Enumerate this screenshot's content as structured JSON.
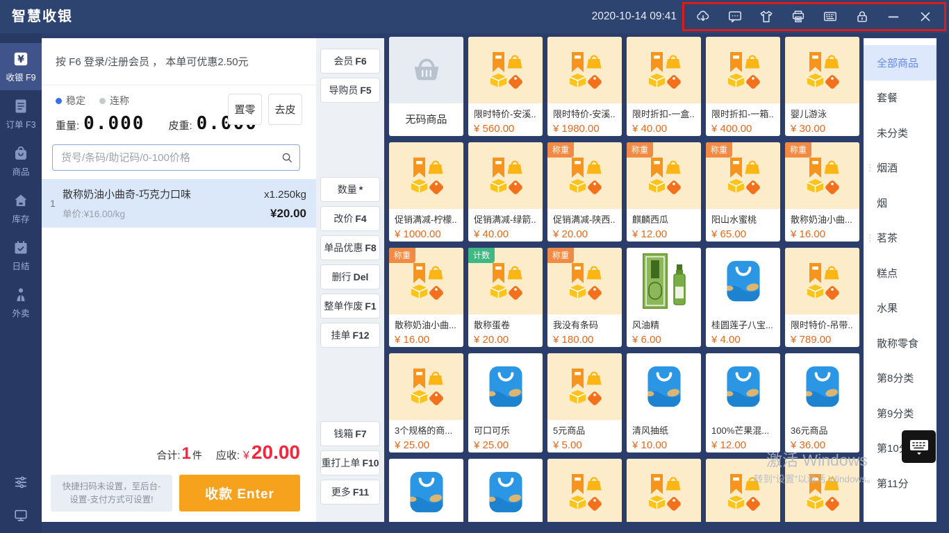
{
  "topbar": {
    "logo": "智慧收银",
    "datetime": "2020-10-14 09:41",
    "icons": [
      "cloud-download",
      "message",
      "clothing",
      "printer",
      "keyboard",
      "lock",
      "minimize",
      "close"
    ]
  },
  "sidebar": {
    "items": [
      {
        "label": "收银 F9",
        "icon": "cashier",
        "active": true
      },
      {
        "label": "订单 F3",
        "icon": "orders"
      },
      {
        "label": "商品",
        "icon": "goods"
      },
      {
        "label": "库存",
        "icon": "inventory"
      },
      {
        "label": "日结",
        "icon": "daily"
      },
      {
        "label": "外卖",
        "icon": "takeout"
      }
    ],
    "bottom_icons": [
      "settings-sliders",
      "monitor"
    ]
  },
  "pos": {
    "member_bar": "按 F6 登录/注册会员 ， 本单可优惠2.50元",
    "scale": {
      "stable_label": "稳定",
      "continuous_label": "连称",
      "weight_label": "重量:",
      "weight_value": "0.000",
      "tare_label": "皮重:",
      "tare_value": "0.000",
      "zero_button": "置零",
      "tare_button": "去皮"
    },
    "search_placeholder": "货号/条码/助记码/0-100价格",
    "cart": [
      {
        "index": "1",
        "name": "散称奶油小曲奇-巧克力口味",
        "qty": "x1.250kg",
        "unit_price": "单价:¥16.00/kg",
        "amount": "¥20.00"
      }
    ],
    "totals": {
      "label_total": "合计:",
      "count": "1",
      "unit": "件",
      "label_due": "应收:",
      "currency": "¥",
      "amount": "20.00"
    },
    "hint": "快捷扫码未设置，至后台-设置-支付方式可设置!",
    "pay_button": "收款 Enter"
  },
  "func_buttons": {
    "group1": [
      {
        "text": "会员",
        "key": "F6"
      },
      {
        "text": "导购员",
        "key": "F5"
      }
    ],
    "group2": [
      {
        "text": "数量",
        "key": "*"
      },
      {
        "text": "改价",
        "key": "F4"
      },
      {
        "text": "单品优惠",
        "key": "F8"
      },
      {
        "text": "删行",
        "key": "Del"
      },
      {
        "text": "整单作废",
        "key": "F1"
      },
      {
        "text": "挂单",
        "key": "F12"
      }
    ],
    "group3": [
      {
        "text": "钱箱",
        "key": "F7"
      },
      {
        "text": "重打上单",
        "key": "F10"
      },
      {
        "text": "更多",
        "key": "F11"
      }
    ]
  },
  "products": [
    {
      "name": "无码商品",
      "icon": "basket",
      "style": "nocode"
    },
    {
      "name": "限时特价-安溪..",
      "price": "560.00",
      "icon": "promo"
    },
    {
      "name": "限时特价-安溪..",
      "price": "1980.00",
      "icon": "promo"
    },
    {
      "name": "限时折扣-一盒..",
      "price": "40.00",
      "icon": "promo"
    },
    {
      "name": "限时折扣-一箱..",
      "price": "400.00",
      "icon": "promo"
    },
    {
      "name": "婴儿游泳",
      "price": "30.00",
      "icon": "promo"
    },
    {
      "name": "促销满减-柠檬..",
      "price": "1000.00",
      "icon": "promo"
    },
    {
      "name": "促销满减-绿箭..",
      "price": "40.00",
      "icon": "promo"
    },
    {
      "name": "促销满减-陕西..",
      "price": "20.00",
      "icon": "promo",
      "tag": "称重",
      "tag_type": "weigh"
    },
    {
      "name": "麒麟西瓜",
      "price": "12.00",
      "icon": "promo",
      "tag": "称重",
      "tag_type": "weigh"
    },
    {
      "name": "阳山水蜜桃",
      "price": "65.00",
      "icon": "promo",
      "tag": "称重",
      "tag_type": "weigh"
    },
    {
      "name": "散称奶油小曲...",
      "price": "16.00",
      "icon": "promo",
      "tag": "称重",
      "tag_type": "weigh"
    },
    {
      "name": "散称奶油小曲...",
      "price": "16.00",
      "icon": "promo",
      "tag": "称重",
      "tag_type": "weigh"
    },
    {
      "name": "散称蛋卷",
      "price": "20.00",
      "icon": "promo",
      "tag": "计数",
      "tag_type": "count"
    },
    {
      "name": "我没有条码",
      "price": "180.00",
      "icon": "promo",
      "tag": "称重",
      "tag_type": "weigh"
    },
    {
      "name": "风油精",
      "price": "6.00",
      "icon": "fengyoujing"
    },
    {
      "name": "桂圆莲子八宝...",
      "price": "4.00",
      "icon": "bag"
    },
    {
      "name": "限时特价-吊带..",
      "price": "789.00",
      "icon": "promo"
    },
    {
      "name": "3个规格的商...",
      "price": "25.00",
      "icon": "promo"
    },
    {
      "name": "可口可乐",
      "price": "25.00",
      "icon": "bag"
    },
    {
      "name": "5元商品",
      "price": "5.00",
      "icon": "promo"
    },
    {
      "name": "清风抽纸",
      "price": "10.00",
      "icon": "bag"
    },
    {
      "name": "100%芒果混...",
      "price": "12.00",
      "icon": "bag"
    },
    {
      "name": "36元商品",
      "price": "36.00",
      "icon": "bag"
    },
    {
      "icon": "bag"
    },
    {
      "icon": "bag"
    },
    {
      "icon": "promo"
    },
    {
      "icon": "promo"
    },
    {
      "icon": "promo"
    },
    {
      "icon": "promo"
    }
  ],
  "categories": [
    {
      "label": "全部商品",
      "active": true
    },
    {
      "label": "套餐"
    },
    {
      "label": "未分类"
    },
    {
      "label": "烟酒",
      "dots": true
    },
    {
      "label": "烟"
    },
    {
      "label": "茗茶",
      "dots": true
    },
    {
      "label": "糕点"
    },
    {
      "label": "水果"
    },
    {
      "label": "散称零食"
    },
    {
      "label": "第8分类"
    },
    {
      "label": "第9分类"
    },
    {
      "label": "第10分"
    },
    {
      "label": "第11分"
    }
  ],
  "watermark": {
    "line1": "激活 Windows",
    "line2": "转到“设置”以激活 Windows。"
  },
  "colors": {
    "topbar_bg": "#2d4370",
    "sidebar_bg": "#283a63",
    "sidebar_active_bg": "#40538a",
    "annotation_red": "#dd1b1b",
    "pay_orange": "#f6a21d",
    "danger_red": "#f5253d",
    "price_orange": "#e2691e",
    "promo_card_bg": "#fcecca",
    "cart_item_bg": "#dbe8fa",
    "category_active_text": "#6389ee",
    "category_active_bg": "#dde8fd",
    "tag_weigh_bg": "#f18a44",
    "tag_count_bg": "#3fb883"
  }
}
